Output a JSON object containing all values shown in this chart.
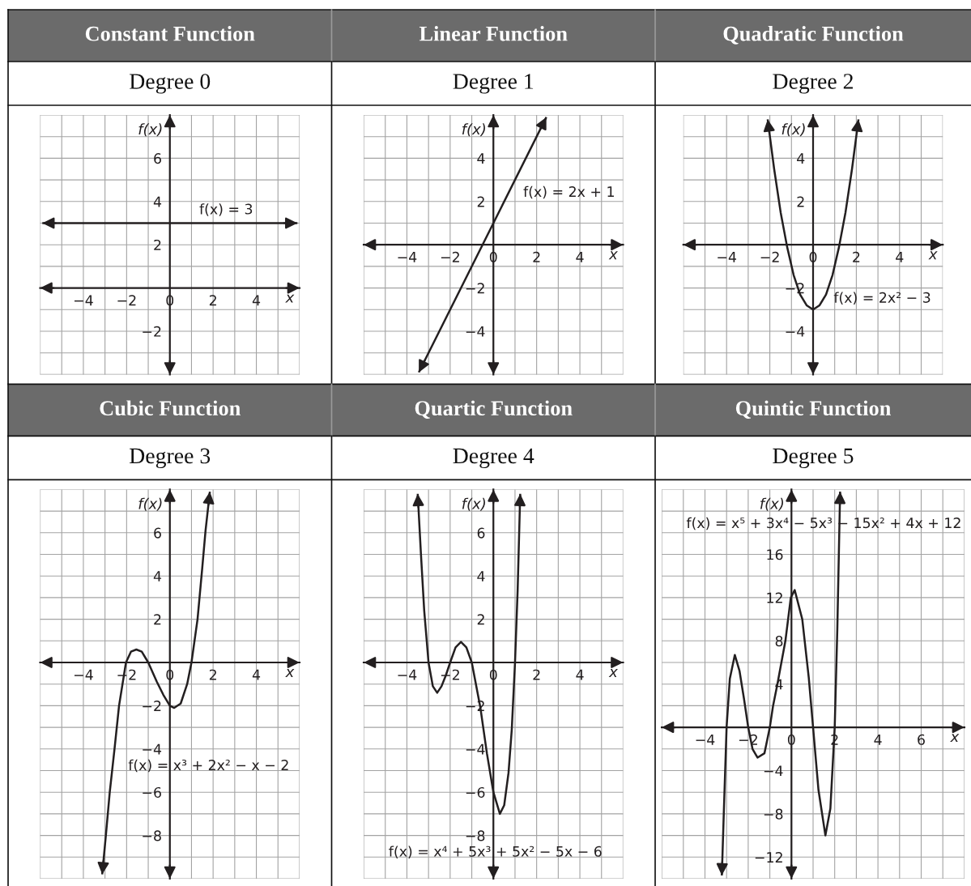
{
  "chart_data": [
    {
      "type": "line",
      "title": "Constant Function",
      "subtitle": "Degree 0",
      "xlabel": "x",
      "ylabel": "f(x)",
      "xlim": [
        -6,
        6
      ],
      "ylim": [
        -4,
        8
      ],
      "xticks": [
        {
          "value": -6,
          "label": null
        },
        {
          "value": -5,
          "label": null
        },
        {
          "value": -4,
          "label": "−4"
        },
        {
          "value": -3,
          "label": null
        },
        {
          "value": -2,
          "label": "−2"
        },
        {
          "value": -1,
          "label": null
        },
        0,
        {
          "value": 1,
          "label": null
        },
        2,
        {
          "value": 3,
          "label": null
        },
        4,
        {
          "value": 5,
          "label": null
        },
        {
          "value": 6,
          "label": null
        }
      ],
      "yticks": [
        {
          "value": -4,
          "label": null
        },
        {
          "value": -3,
          "label": null
        },
        {
          "value": -2,
          "label": "−2"
        },
        {
          "value": -1,
          "label": null
        },
        {
          "value": 0,
          "label": null
        },
        {
          "value": 1,
          "label": null
        },
        2,
        {
          "value": 3,
          "label": null
        },
        4,
        {
          "value": 5,
          "label": null
        },
        6,
        {
          "value": 7,
          "label": null
        },
        {
          "value": 8,
          "label": null
        }
      ],
      "grid": true,
      "series": [
        {
          "color": "#231f20",
          "x": [
            -5.9,
            5.9
          ],
          "values": [
            3,
            3
          ]
        }
      ],
      "annotations": [
        "f(x) = 3"
      ]
    },
    {
      "type": "line",
      "title": "Linear Function",
      "subtitle": "Degree 1",
      "xlabel": "x",
      "ylabel": "f(x)",
      "xlim": [
        -6,
        6
      ],
      "ylim": [
        -6,
        6
      ],
      "xticks": [
        {
          "value": -6,
          "label": null
        },
        {
          "value": -5,
          "label": null
        },
        {
          "value": -4,
          "label": "−4"
        },
        {
          "value": -3,
          "label": null
        },
        {
          "value": -2,
          "label": "−2"
        },
        {
          "value": -1,
          "label": null
        },
        0,
        {
          "value": 1,
          "label": null
        },
        2,
        {
          "value": 3,
          "label": null
        },
        4,
        {
          "value": 5,
          "label": null
        },
        {
          "value": 6,
          "label": null
        }
      ],
      "yticks": [
        {
          "value": -6,
          "label": null
        },
        {
          "value": -5,
          "label": null
        },
        {
          "value": -4,
          "label": "−4"
        },
        {
          "value": -3,
          "label": null
        },
        {
          "value": -2,
          "label": "−2"
        },
        {
          "value": -1,
          "label": null
        },
        {
          "value": 0,
          "label": null
        },
        {
          "value": 1,
          "label": null
        },
        2,
        {
          "value": 3,
          "label": null
        },
        4,
        {
          "value": 5,
          "label": null
        },
        {
          "value": 6,
          "label": null
        }
      ],
      "grid": true,
      "series": [
        {
          "color": "#231f20",
          "x": [
            -3.45,
            2.45
          ],
          "values": [
            -5.9,
            5.9
          ]
        }
      ],
      "annotations": [
        "f(x) = 2x + 1"
      ]
    },
    {
      "type": "line",
      "title": "Quadratic Function",
      "subtitle": "Degree 2",
      "xlabel": "x",
      "ylabel": "f(x)",
      "xlim": [
        -6,
        6
      ],
      "ylim": [
        -6,
        6
      ],
      "xticks": [
        {
          "value": -6,
          "label": null
        },
        {
          "value": -5,
          "label": null
        },
        {
          "value": -4,
          "label": "−4"
        },
        {
          "value": -3,
          "label": null
        },
        {
          "value": -2,
          "label": "−2"
        },
        {
          "value": -1,
          "label": null
        },
        0,
        {
          "value": 1,
          "label": null
        },
        2,
        {
          "value": 3,
          "label": null
        },
        4,
        {
          "value": 5,
          "label": null
        },
        {
          "value": 6,
          "label": null
        }
      ],
      "yticks": [
        {
          "value": -6,
          "label": null
        },
        {
          "value": -5,
          "label": null
        },
        {
          "value": -4,
          "label": "−4"
        },
        {
          "value": -3,
          "label": null
        },
        {
          "value": -2,
          "label": "−2"
        },
        {
          "value": -1,
          "label": null
        },
        {
          "value": 0,
          "label": null
        },
        {
          "value": 1,
          "label": null
        },
        2,
        {
          "value": 3,
          "label": null
        },
        4,
        {
          "value": 5,
          "label": null
        },
        {
          "value": 6,
          "label": null
        }
      ],
      "grid": true,
      "series": [
        {
          "color": "#231f20",
          "x": [
            -2.1,
            -1.8,
            -1.5,
            -1.2,
            -0.9,
            -0.6,
            -0.3,
            0,
            0.3,
            0.6,
            0.9,
            1.2,
            1.5,
            1.8,
            2.1
          ],
          "values": [
            5.8,
            3.5,
            1.5,
            -0.1,
            -1.4,
            -2.3,
            -2.8,
            -3,
            -2.8,
            -2.3,
            -1.4,
            -0.1,
            1.5,
            3.5,
            5.8
          ]
        }
      ],
      "annotations": [
        "f(x) = 2x² − 3"
      ]
    },
    {
      "type": "line",
      "title": "Cubic Function",
      "subtitle": "Degree 3",
      "xlabel": "x",
      "ylabel": "f(x)",
      "xlim": [
        -6,
        6
      ],
      "ylim": [
        -10,
        8
      ],
      "xticks": [
        {
          "value": -6,
          "label": null
        },
        {
          "value": -5,
          "label": null
        },
        {
          "value": -4,
          "label": "−4"
        },
        {
          "value": -3,
          "label": null
        },
        {
          "value": -2,
          "label": "−2"
        },
        {
          "value": -1,
          "label": null
        },
        0,
        {
          "value": 1,
          "label": null
        },
        2,
        {
          "value": 3,
          "label": null
        },
        4,
        {
          "value": 5,
          "label": null
        },
        {
          "value": 6,
          "label": null
        }
      ],
      "yticks": [
        {
          "value": -10,
          "label": null
        },
        {
          "value": -9,
          "label": null
        },
        {
          "value": -8,
          "label": "−8"
        },
        {
          "value": -7,
          "label": null
        },
        {
          "value": -6,
          "label": "−6"
        },
        {
          "value": -5,
          "label": null
        },
        {
          "value": -4,
          "label": "−4"
        },
        {
          "value": -3,
          "label": null
        },
        {
          "value": -2,
          "label": "−2"
        },
        {
          "value": -1,
          "label": null
        },
        {
          "value": 0,
          "label": null
        },
        {
          "value": 1,
          "label": null
        },
        2,
        {
          "value": 3,
          "label": null
        },
        4,
        {
          "value": 5,
          "label": null
        },
        6,
        {
          "value": 7,
          "label": null
        },
        {
          "value": 8,
          "label": null
        }
      ],
      "grid": true,
      "series": [
        {
          "color": "#231f20",
          "x": [
            -3.13,
            -2.96,
            -2.78,
            -2.56,
            -2.35,
            -2.03,
            -1.8,
            -1.55,
            -1.3,
            -1.0,
            -0.6,
            -0.3,
            0,
            0.2,
            0.5,
            0.8,
            1.0,
            1.28,
            1.5,
            1.65,
            1.85
          ],
          "values": [
            -9.8,
            -8.0,
            -6.0,
            -4.0,
            -2.0,
            0,
            0.5,
            0.6,
            0.5,
            0,
            -0.9,
            -1.5,
            -2.0,
            -2.1,
            -1.9,
            -1.0,
            0,
            2.0,
            4.4,
            6.1,
            7.9
          ]
        }
      ],
      "annotations": [
        "f(x) = x³ + 2x² − x − 2"
      ]
    },
    {
      "type": "line",
      "title": "Quartic Function",
      "subtitle": "Degree 4",
      "xlabel": "x",
      "ylabel": "f(x)",
      "xlim": [
        -6,
        6
      ],
      "ylim": [
        -10,
        8
      ],
      "xticks": [
        {
          "value": -6,
          "label": null
        },
        {
          "value": -5,
          "label": null
        },
        {
          "value": -4,
          "label": "−4"
        },
        {
          "value": -3,
          "label": null
        },
        {
          "value": -2,
          "label": "−2"
        },
        {
          "value": -1,
          "label": null
        },
        0,
        {
          "value": 1,
          "label": null
        },
        2,
        {
          "value": 3,
          "label": null
        },
        4,
        {
          "value": 5,
          "label": null
        },
        {
          "value": 6,
          "label": null
        }
      ],
      "yticks": [
        {
          "value": -10,
          "label": null
        },
        {
          "value": -9,
          "label": null
        },
        {
          "value": -8,
          "label": "−8"
        },
        {
          "value": -7,
          "label": null
        },
        {
          "value": -6,
          "label": "−6"
        },
        {
          "value": -5,
          "label": null
        },
        {
          "value": -4,
          "label": "−4"
        },
        {
          "value": -3,
          "label": null
        },
        {
          "value": -2,
          "label": "−2"
        },
        {
          "value": -1,
          "label": null
        },
        {
          "value": 0,
          "label": null
        },
        {
          "value": 1,
          "label": null
        },
        2,
        {
          "value": 3,
          "label": null
        },
        4,
        {
          "value": 5,
          "label": null
        },
        6,
        {
          "value": 7,
          "label": null
        },
        {
          "value": 8,
          "label": null
        }
      ],
      "grid": true,
      "series": [
        {
          "color": "#231f20",
          "x": [
            -3.5,
            -3.35,
            -3.2,
            -3.0,
            -2.8,
            -2.6,
            -2.4,
            -2.2,
            -2.0,
            -1.75,
            -1.5,
            -1.25,
            -1.0,
            -0.6,
            -0.3,
            0,
            0.3,
            0.5,
            0.7,
            0.85,
            1.0,
            1.12,
            1.24
          ],
          "values": [
            7.8,
            5.0,
            2.4,
            0,
            -1.1,
            -1.4,
            -1.1,
            -0.6,
            0,
            0.7,
            0.95,
            0.7,
            0,
            -2.1,
            -4.2,
            -6.0,
            -7.0,
            -6.6,
            -5.1,
            -3.1,
            0,
            3.3,
            7.8
          ]
        }
      ],
      "annotations": [
        "f(x) = x⁴ + 5x³ + 5x² − 5x − 6"
      ]
    },
    {
      "type": "line",
      "title": "Quintic Function",
      "subtitle": "Degree 5",
      "xlabel": "x",
      "ylabel": "f(x)",
      "xlim": [
        -6,
        8
      ],
      "ylim": [
        -14,
        22
      ],
      "xticks": [
        {
          "value": -6,
          "label": null
        },
        {
          "value": -5,
          "label": null
        },
        {
          "value": -4,
          "label": "−4"
        },
        {
          "value": -3,
          "label": null
        },
        {
          "value": -2,
          "label": "−2"
        },
        {
          "value": -1,
          "label": null
        },
        0,
        {
          "value": 1,
          "label": null
        },
        2,
        {
          "value": 3,
          "label": null
        },
        4,
        {
          "value": 5,
          "label": null
        },
        6,
        {
          "value": 7,
          "label": null
        },
        {
          "value": 8,
          "label": null
        }
      ],
      "yticks": [
        {
          "value": -14,
          "label": null
        },
        {
          "value": -12,
          "label": "−12"
        },
        {
          "value": -10,
          "label": null
        },
        {
          "value": -8,
          "label": "−8"
        },
        {
          "value": -6,
          "label": null
        },
        {
          "value": -4,
          "label": "−4"
        },
        {
          "value": -2,
          "label": null
        },
        {
          "value": 0,
          "label": null
        },
        {
          "value": 2,
          "label": null
        },
        4,
        {
          "value": 6,
          "label": null
        },
        8,
        {
          "value": 10,
          "label": null
        },
        12,
        {
          "value": 14,
          "label": null
        },
        16,
        {
          "value": 18,
          "label": null
        },
        {
          "value": 20,
          "label": null
        },
        {
          "value": 22,
          "label": null
        }
      ],
      "grid": true,
      "series": [
        {
          "color": "#231f20",
          "x": [
            -3.22,
            -3.13,
            -3.0,
            -2.85,
            -2.62,
            -2.4,
            -2.2,
            -2.0,
            -1.8,
            -1.57,
            -1.25,
            -1.0,
            -0.85,
            -0.65,
            -0.28,
            -0.03,
            0.15,
            0.5,
            0.8,
            1.0,
            1.25,
            1.57,
            1.8,
            2.0,
            2.12,
            2.25
          ],
          "values": [
            -13.7,
            -8.0,
            0,
            4.5,
            6.7,
            5.2,
            2.7,
            0,
            -2.0,
            -2.8,
            -2.4,
            0,
            2.0,
            4.0,
            8.0,
            12.0,
            12.7,
            10.0,
            4.6,
            0,
            -5.8,
            -10.0,
            -7.5,
            0,
            9.0,
            21.8
          ]
        }
      ],
      "annotations": [
        "f(x) = x⁵ + 3x⁴ − 5x³ − 15x² + 4x + 12"
      ]
    }
  ]
}
